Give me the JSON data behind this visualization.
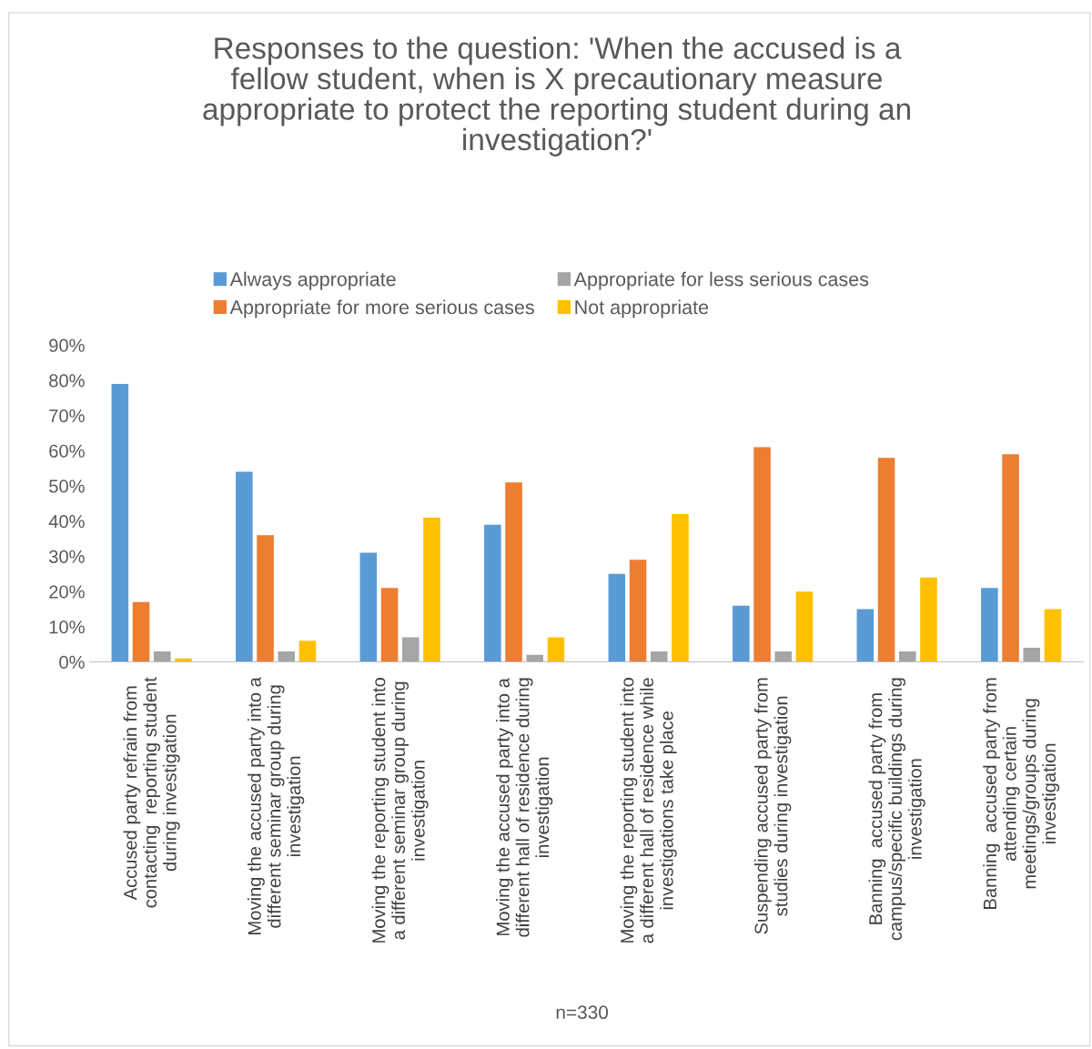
{
  "chart_data": {
    "type": "bar",
    "title": "Responses to the question: 'When the accused is a\nfellow student, when is X precautionary measure\nappropriate to protect the reporting student during an\ninvestigation?'",
    "xlabel": "n=330",
    "categories": [
      "Accused party refrain from\ncontacting  reporting student\nduring investigation",
      "Moving the accused party into a\ndifferent seminar group during\ninvestigation",
      "Moving the reporting student into\na different seminar group during\ninvestigation",
      "Moving the accused party into a\ndifferent hall of residence during\ninvestigation",
      "Moving the reporting student into\na different hall of residence while\ninvestigations take place",
      "Suspending accused party from\nstudies during investigation",
      "Banning  accused party from\ncampus/specific buildings during\ninvestigation",
      "Banning  accused party from\nattending certain\nmeetings/groups during\ninvestigation"
    ],
    "series": [
      {
        "name": "Always appropriate",
        "color": "#5b9bd5",
        "values": [
          79,
          54,
          31,
          39,
          25,
          16,
          15,
          21
        ]
      },
      {
        "name": "Appropriate for more serious cases",
        "color": "#ed7d31",
        "values": [
          17,
          36,
          21,
          51,
          29,
          61,
          58,
          59
        ]
      },
      {
        "name": "Appropriate for less serious cases",
        "color": "#a5a5a5",
        "values": [
          3,
          3,
          7,
          2,
          3,
          3,
          3,
          4
        ]
      },
      {
        "name": "Not appropriate",
        "color": "#ffc000",
        "values": [
          1,
          6,
          41,
          7,
          42,
          20,
          24,
          15
        ]
      }
    ],
    "ylim": [
      0,
      90
    ],
    "yticks": [
      {
        "value": 0,
        "label": "0%"
      },
      {
        "value": 10,
        "label": "10%"
      },
      {
        "value": 20,
        "label": "20%"
      },
      {
        "value": 30,
        "label": "30%"
      },
      {
        "value": 40,
        "label": "40%"
      },
      {
        "value": 50,
        "label": "50%"
      },
      {
        "value": 60,
        "label": "60%"
      },
      {
        "value": 70,
        "label": "70%"
      },
      {
        "value": 80,
        "label": "80%"
      },
      {
        "value": 90,
        "label": "90%"
      }
    ],
    "grid": false,
    "legend": "top"
  }
}
